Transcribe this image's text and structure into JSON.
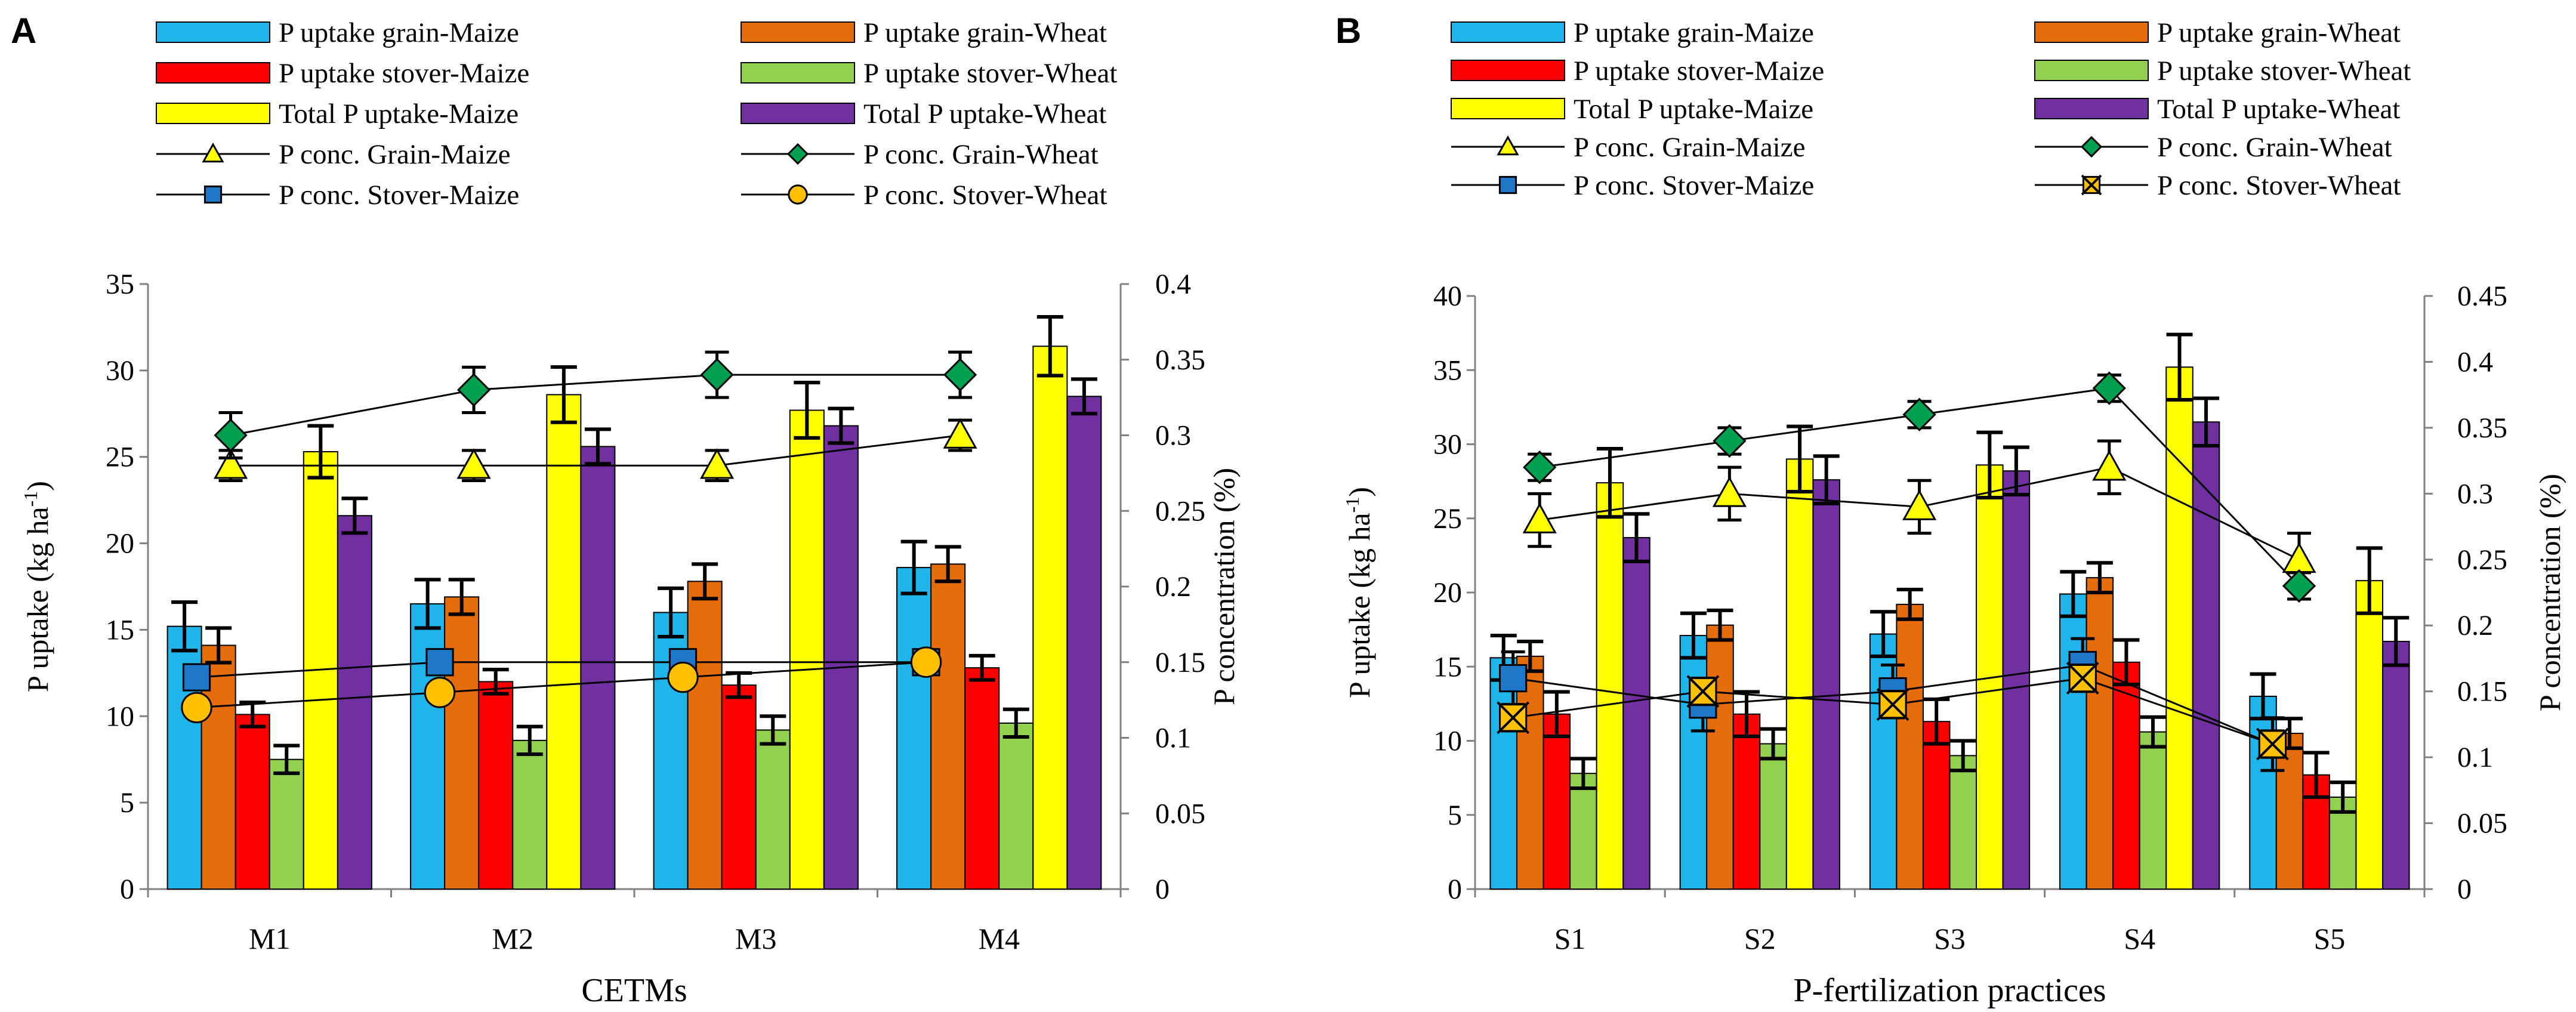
{
  "chart_data": [
    {
      "type": "bar",
      "panel": "A",
      "xlabel": "CETMs",
      "ylabel": "P uptake (kg ha",
      "ylabel_sup": "-1",
      "ylabel_end": ")",
      "y2label": "P concentration (%)",
      "ylim": [
        0,
        35
      ],
      "yticks": [
        "0",
        "5",
        "10",
        "15",
        "20",
        "25",
        "30",
        "35"
      ],
      "y2lim": [
        0,
        0.4
      ],
      "y2ticks": [
        "0",
        "0.05",
        "0.1",
        "0.15",
        "0.2",
        "0.25",
        "0.3",
        "0.35",
        "0.4"
      ],
      "categories": [
        "M1",
        "M2",
        "M3",
        "M4"
      ],
      "bar_series": [
        {
          "name": "P uptake grain-Maize",
          "color": "#1fb4ea",
          "values": [
            15.2,
            16.5,
            16.0,
            18.6
          ],
          "errors": [
            1.4,
            1.4,
            1.4,
            1.5
          ]
        },
        {
          "name": "P uptake grain-Wheat",
          "color": "#e46c0a",
          "values": [
            14.1,
            16.9,
            17.8,
            18.8
          ],
          "errors": [
            1.0,
            1.0,
            1.0,
            1.0
          ]
        },
        {
          "name": "P uptake stover-Maize",
          "color": "#ff0000",
          "values": [
            10.1,
            12.0,
            11.8,
            12.8
          ],
          "errors": [
            0.7,
            0.7,
            0.7,
            0.7
          ]
        },
        {
          "name": "P uptake stover-Wheat",
          "color": "#92d050",
          "values": [
            7.5,
            8.6,
            9.2,
            9.6
          ],
          "errors": [
            0.8,
            0.8,
            0.8,
            0.8
          ]
        },
        {
          "name": "Total P uptake-Maize",
          "color": "#ffff00",
          "values": [
            25.3,
            28.6,
            27.7,
            31.4
          ],
          "errors": [
            1.5,
            1.6,
            1.6,
            1.7
          ]
        },
        {
          "name": "Total P uptake-Wheat",
          "color": "#7030a0",
          "values": [
            21.6,
            25.6,
            26.8,
            28.5
          ],
          "errors": [
            1.0,
            1.0,
            1.0,
            1.0
          ]
        }
      ],
      "line_series": [
        {
          "name": "P conc. Grain-Maize",
          "marker": "triangle",
          "color": "#ffff00",
          "values": [
            0.28,
            0.28,
            0.28,
            0.3
          ],
          "errors": [
            0.01,
            0.01,
            0.01,
            0.01
          ]
        },
        {
          "name": "P conc. Grain-Wheat",
          "marker": "diamond",
          "color": "#00a050",
          "values": [
            0.3,
            0.33,
            0.34,
            0.34
          ],
          "errors": [
            0.015,
            0.015,
            0.015,
            0.015
          ]
        },
        {
          "name": "P conc. Stover-Maize",
          "marker": "square",
          "color": "#1f77c8",
          "values": [
            0.14,
            0.15,
            0.15,
            0.15
          ],
          "errors": [
            0.005,
            0.005,
            0.005,
            0.005
          ]
        },
        {
          "name": "P conc. Stover-Wheat",
          "marker": "circle",
          "color": "#ffc000",
          "values": [
            0.12,
            0.13,
            0.14,
            0.15
          ],
          "errors": [
            0.005,
            0.005,
            0.005,
            0.005
          ]
        }
      ]
    },
    {
      "type": "bar",
      "panel": "B",
      "xlabel": "P-fertilization practices",
      "ylabel": "P uptake (kg ha",
      "ylabel_sup": "-1",
      "ylabel_end": ")",
      "y2label": "P concentration (%)",
      "ylim": [
        0,
        40
      ],
      "yticks": [
        "0",
        "5",
        "10",
        "15",
        "20",
        "25",
        "30",
        "35",
        "40"
      ],
      "y2lim": [
        0,
        0.45
      ],
      "y2ticks": [
        "0",
        "0.05",
        "0.1",
        "0.15",
        "0.2",
        "0.25",
        "0.3",
        "0.35",
        "0.4",
        "0.45"
      ],
      "categories": [
        "S1",
        "S2",
        "S3",
        "S4",
        "S5"
      ],
      "bar_series": [
        {
          "name": "P uptake grain-Maize",
          "color": "#1fb4ea",
          "values": [
            15.6,
            17.1,
            17.2,
            19.9,
            13.0
          ],
          "errors": [
            1.5,
            1.5,
            1.5,
            1.5,
            1.5
          ]
        },
        {
          "name": "P uptake grain-Wheat",
          "color": "#e46c0a",
          "values": [
            15.7,
            17.8,
            19.2,
            21.0,
            10.5
          ],
          "errors": [
            1.0,
            1.0,
            1.0,
            1.0,
            1.0
          ]
        },
        {
          "name": "P uptake stover-Maize",
          "color": "#ff0000",
          "values": [
            11.8,
            11.8,
            11.3,
            15.3,
            7.7
          ],
          "errors": [
            1.5,
            1.5,
            1.5,
            1.5,
            1.5
          ]
        },
        {
          "name": "P uptake stover-Wheat",
          "color": "#92d050",
          "values": [
            7.8,
            9.8,
            9.0,
            10.6,
            6.2
          ],
          "errors": [
            1.0,
            1.0,
            1.0,
            1.0,
            1.0
          ]
        },
        {
          "name": "Total P uptake-Maize",
          "color": "#ffff00",
          "values": [
            27.4,
            29.0,
            28.6,
            35.2,
            20.8
          ],
          "errors": [
            2.3,
            2.2,
            2.2,
            2.2,
            2.2
          ]
        },
        {
          "name": "Total P uptake-Wheat",
          "color": "#7030a0",
          "values": [
            23.7,
            27.6,
            28.2,
            31.5,
            16.7
          ],
          "errors": [
            1.6,
            1.6,
            1.6,
            1.6,
            1.6
          ]
        }
      ],
      "line_series": [
        {
          "name": "P conc. Grain-Maize",
          "marker": "triangle",
          "color": "#ffff00",
          "values": [
            0.28,
            0.3,
            0.29,
            0.32,
            0.25
          ],
          "errors": [
            0.02,
            0.02,
            0.02,
            0.02,
            0.02
          ]
        },
        {
          "name": "P conc. Grain-Wheat",
          "marker": "diamond",
          "color": "#00a050",
          "values": [
            0.32,
            0.34,
            0.36,
            0.38,
            0.23
          ],
          "errors": [
            0.01,
            0.01,
            0.01,
            0.01,
            0.01
          ]
        },
        {
          "name": "P conc. Stover-Maize",
          "marker": "square",
          "color": "#1f77c8",
          "values": [
            0.16,
            0.14,
            0.15,
            0.17,
            0.11
          ],
          "errors": [
            0.02,
            0.02,
            0.02,
            0.02,
            0.02
          ]
        },
        {
          "name": "P conc. Stover-Wheat",
          "marker": "x",
          "color": "#ffc000",
          "values": [
            0.13,
            0.15,
            0.14,
            0.16,
            0.11
          ],
          "errors": [
            0.01,
            0.01,
            0.01,
            0.01,
            0.01
          ]
        }
      ]
    }
  ]
}
